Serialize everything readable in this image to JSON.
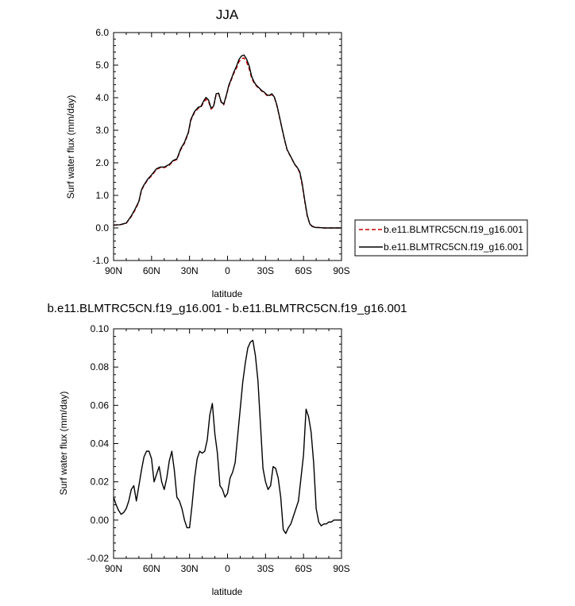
{
  "chart_data": [
    {
      "type": "line",
      "title": "JJA",
      "xlabel": "latitude",
      "ylabel": "Surf water flux (mm/day)",
      "xlim": [
        -90,
        90
      ],
      "ylim": [
        -1.0,
        6.0
      ],
      "x_tick_values": [
        -90,
        -60,
        -30,
        0,
        30,
        60,
        90
      ],
      "x_tick_labels": [
        "90N",
        "60N",
        "30N",
        "0",
        "30S",
        "60S",
        "90S"
      ],
      "y_tick_values": [
        -1,
        0,
        1,
        2,
        3,
        4,
        5,
        6
      ],
      "y_tick_labels": [
        "-1.0",
        "0.0",
        "1.0",
        "2.0",
        "3.0",
        "4.0",
        "5.0",
        "6.0"
      ],
      "grid": false,
      "legend_position": "right",
      "series": [
        {
          "name": "b.e11.BLMTRC5CN.f19_g16.001",
          "color": "#cc0000",
          "dash": "dashed",
          "x": [
            -90,
            -85,
            -80,
            -76,
            -73,
            -70,
            -68,
            -66,
            -63,
            -60,
            -56,
            -53,
            -50,
            -46,
            -43,
            -40,
            -37,
            -34,
            -31,
            -29,
            -26,
            -23,
            -21,
            -19,
            -17,
            -15,
            -13,
            -11,
            -9,
            -7,
            -5,
            -3,
            -1,
            1,
            3,
            5,
            7,
            9,
            11,
            13,
            15,
            17,
            19,
            21,
            23,
            25,
            27,
            29,
            31,
            33,
            35,
            37,
            39,
            41,
            43,
            45,
            47,
            49,
            51,
            53,
            55,
            57,
            59,
            61,
            63,
            65,
            67,
            70,
            73,
            76,
            80,
            85,
            90
          ],
          "y": [
            0.08,
            0.1,
            0.14,
            0.35,
            0.55,
            0.8,
            1.15,
            1.3,
            1.48,
            1.6,
            1.8,
            1.85,
            1.85,
            1.92,
            2.05,
            2.1,
            2.4,
            2.6,
            2.9,
            3.3,
            3.55,
            3.68,
            3.7,
            3.85,
            3.95,
            3.88,
            3.65,
            3.72,
            4.1,
            4.12,
            3.85,
            3.78,
            4.05,
            4.35,
            4.55,
            4.75,
            4.9,
            5.1,
            5.2,
            5.22,
            5.1,
            4.9,
            4.6,
            4.45,
            4.35,
            4.28,
            4.2,
            4.15,
            4.07,
            4.05,
            4.1,
            4.0,
            3.75,
            3.4,
            3.05,
            2.7,
            2.4,
            2.25,
            2.1,
            1.95,
            1.85,
            1.7,
            1.3,
            0.8,
            0.35,
            0.12,
            0.05,
            0.02,
            0.01,
            0.0,
            0.0,
            0.0,
            0.0
          ]
        },
        {
          "name": "b.e11.BLMTRC5CN.f19_g16.001",
          "color": "#000000",
          "dash": "solid",
          "x": [
            -90,
            -85,
            -80,
            -76,
            -73,
            -70,
            -68,
            -66,
            -63,
            -60,
            -56,
            -53,
            -50,
            -46,
            -43,
            -40,
            -37,
            -34,
            -31,
            -29,
            -26,
            -23,
            -21,
            -19,
            -17,
            -15,
            -13,
            -11,
            -9,
            -7,
            -5,
            -3,
            -1,
            1,
            3,
            5,
            7,
            9,
            11,
            13,
            15,
            17,
            19,
            21,
            23,
            25,
            27,
            29,
            31,
            33,
            35,
            37,
            39,
            41,
            43,
            45,
            47,
            49,
            51,
            53,
            55,
            57,
            59,
            61,
            63,
            65,
            67,
            70,
            73,
            76,
            80,
            85,
            90
          ],
          "y": [
            0.09,
            0.1,
            0.15,
            0.37,
            0.58,
            0.82,
            1.17,
            1.32,
            1.5,
            1.63,
            1.82,
            1.87,
            1.87,
            1.95,
            2.07,
            2.12,
            2.43,
            2.63,
            2.93,
            3.33,
            3.58,
            3.71,
            3.73,
            3.89,
            4.01,
            3.93,
            3.68,
            3.74,
            4.12,
            4.14,
            3.87,
            3.8,
            4.07,
            4.38,
            4.58,
            4.79,
            4.96,
            5.17,
            5.28,
            5.31,
            5.19,
            4.99,
            4.66,
            4.48,
            4.37,
            4.3,
            4.22,
            4.17,
            4.09,
            4.07,
            4.12,
            4.02,
            3.77,
            3.42,
            3.06,
            2.72,
            2.41,
            2.26,
            2.11,
            1.96,
            1.86,
            1.73,
            1.36,
            0.84,
            0.38,
            0.12,
            0.04,
            0.01,
            0.01,
            0.0,
            0.0,
            0.0,
            0.0
          ]
        }
      ]
    },
    {
      "type": "line",
      "title": "b.e11.BLMTRC5CN.f19_g16.001 - b.e11.BLMTRC5CN.f19_g16.001",
      "xlabel": "latitude",
      "ylabel": "Surf water flux (mm/day)",
      "xlim": [
        -90,
        90
      ],
      "ylim": [
        -0.02,
        0.1
      ],
      "x_tick_values": [
        -90,
        -60,
        -30,
        0,
        30,
        60,
        90
      ],
      "x_tick_labels": [
        "90N",
        "60N",
        "30N",
        "0",
        "30S",
        "60S",
        "90S"
      ],
      "y_tick_values": [
        -0.02,
        0.0,
        0.02,
        0.04,
        0.06,
        0.08,
        0.1
      ],
      "y_tick_labels": [
        "-0.02",
        "0.00",
        "0.02",
        "0.04",
        "0.06",
        "0.08",
        "0.10"
      ],
      "grid": false,
      "series": [
        {
          "color": "#000000",
          "dash": "solid",
          "x": [
            -90,
            -88,
            -86,
            -84,
            -82,
            -80,
            -78,
            -76,
            -74,
            -72,
            -70,
            -68,
            -66,
            -64,
            -62,
            -60,
            -58,
            -56,
            -54,
            -52,
            -50,
            -48,
            -46,
            -44,
            -42,
            -40,
            -38,
            -36,
            -34,
            -32,
            -30,
            -28,
            -26,
            -24,
            -22,
            -20,
            -18,
            -16,
            -14,
            -12,
            -10,
            -8,
            -6,
            -4,
            -2,
            0,
            2,
            4,
            6,
            8,
            10,
            12,
            14,
            16,
            18,
            20,
            22,
            24,
            26,
            28,
            30,
            32,
            34,
            36,
            38,
            40,
            42,
            44,
            46,
            48,
            50,
            52,
            54,
            56,
            58,
            60,
            62,
            64,
            66,
            68,
            70,
            72,
            74,
            76,
            78,
            80,
            82,
            84,
            86,
            88,
            90
          ],
          "y": [
            0.012,
            0.008,
            0.005,
            0.003,
            0.004,
            0.006,
            0.01,
            0.016,
            0.018,
            0.01,
            0.018,
            0.026,
            0.033,
            0.036,
            0.036,
            0.032,
            0.02,
            0.024,
            0.028,
            0.02,
            0.016,
            0.022,
            0.031,
            0.036,
            0.026,
            0.012,
            0.01,
            0.006,
            0.0,
            -0.004,
            -0.004,
            0.008,
            0.022,
            0.032,
            0.036,
            0.035,
            0.036,
            0.042,
            0.055,
            0.061,
            0.045,
            0.035,
            0.018,
            0.016,
            0.012,
            0.014,
            0.022,
            0.025,
            0.03,
            0.044,
            0.058,
            0.072,
            0.082,
            0.09,
            0.093,
            0.094,
            0.086,
            0.073,
            0.05,
            0.027,
            0.02,
            0.016,
            0.018,
            0.028,
            0.027,
            0.022,
            0.012,
            -0.005,
            -0.007,
            -0.004,
            -0.002,
            0.002,
            0.006,
            0.01,
            0.022,
            0.034,
            0.058,
            0.054,
            0.046,
            0.03,
            0.006,
            -0.001,
            -0.003,
            -0.002,
            -0.002,
            -0.001,
            -0.001,
            0.0,
            0.0,
            0.0,
            0.0
          ]
        }
      ]
    }
  ]
}
